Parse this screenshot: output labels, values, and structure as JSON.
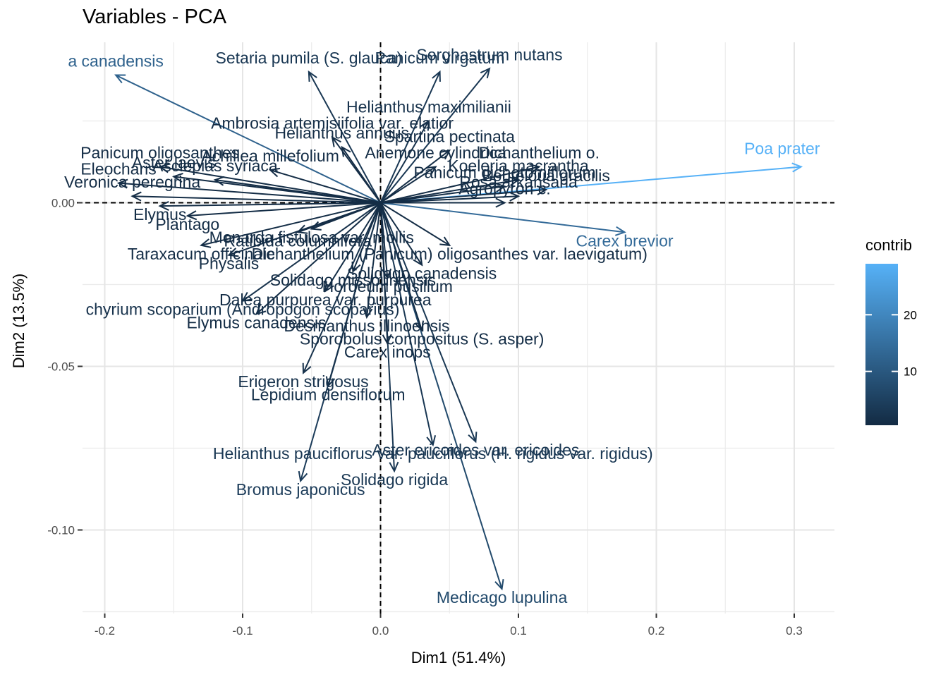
{
  "chart_data": {
    "type": "scatter",
    "title": "Variables - PCA",
    "xlabel": "Dim1 (51.4%)",
    "ylabel": "Dim2 (13.5%)",
    "xlim": [
      -0.215,
      0.33
    ],
    "ylim": [
      -0.125,
      0.055
    ],
    "x_ticks": [
      -0.2,
      -0.1,
      0.0,
      0.1,
      0.2,
      0.3
    ],
    "x_tick_labels": [
      "-0.2",
      "-0.1",
      "0.0",
      "0.1",
      "0.2",
      "0.3"
    ],
    "y_ticks": [
      0.0,
      -0.05,
      -0.1
    ],
    "y_tick_labels": [
      "0.00",
      "-0.05",
      "-0.10"
    ],
    "grid": true,
    "legend": {
      "title": "contrib",
      "position": "right",
      "ticks": [
        10,
        20
      ],
      "tick_labels": [
        "10",
        "20"
      ],
      "range": [
        0.5,
        29
      ],
      "color_low": "#132B43",
      "color_high": "#56B1F7"
    },
    "variables": [
      {
        "label": "Poa prater",
        "x": 0.305,
        "y": 0.011,
        "contrib": 29
      },
      {
        "label": "Carex brevior",
        "x": 0.177,
        "y": -0.009,
        "contrib": 14
      },
      {
        "label": "Medicago lupulina",
        "x": 0.088,
        "y": -0.118,
        "contrib": 7
      },
      {
        "label": "Aster ericoides var. ericoides",
        "x": 0.069,
        "y": -0.073,
        "contrib": 3
      },
      {
        "label": "Helianthus pauciflorus var. pauciflorus (H. rigidus var. rigidus)",
        "x": 0.038,
        "y": -0.074,
        "contrib": 3
      },
      {
        "label": "Solidago rigida",
        "x": 0.01,
        "y": -0.082,
        "contrib": 3
      },
      {
        "label": "Bromus japonicus",
        "x": -0.058,
        "y": -0.085,
        "contrib": 4
      },
      {
        "label": "Lepidium densiflorum",
        "x": -0.038,
        "y": -0.056,
        "contrib": 2
      },
      {
        "label": "Erigeron strigosus",
        "x": -0.056,
        "y": -0.052,
        "contrib": 2
      },
      {
        "label": "Setaria pumila (S. glauca)",
        "x": -0.052,
        "y": 0.04,
        "contrib": 3
      },
      {
        "label": "Panicum virgatum",
        "x": 0.043,
        "y": 0.04,
        "contrib": 3
      },
      {
        "label": "Sorghastrum nutans",
        "x": 0.079,
        "y": 0.041,
        "contrib": 3
      },
      {
        "label": "a canadensis",
        "x": -0.192,
        "y": 0.039,
        "contrib": 12
      },
      {
        "label": "Helianthus maximilianii",
        "x": 0.035,
        "y": 0.025,
        "contrib": 2
      },
      {
        "label": "Ambrosia artemisiifolia var. elatior",
        "x": -0.035,
        "y": 0.02,
        "contrib": 1
      },
      {
        "label": "Helianthus annuus",
        "x": -0.028,
        "y": 0.017,
        "contrib": 1
      },
      {
        "label": "Spartina pectinata",
        "x": 0.05,
        "y": 0.016,
        "contrib": 1
      },
      {
        "label": "Panicum oligosanthes",
        "x": -0.16,
        "y": 0.011,
        "contrib": 1
      },
      {
        "label": "Eleocharis",
        "x": -0.19,
        "y": 0.006,
        "contrib": 1
      },
      {
        "label": "Veronica peregrina",
        "x": -0.18,
        "y": 0.002,
        "contrib": 1
      },
      {
        "label": "Elymus",
        "x": -0.16,
        "y": -0.001,
        "contrib": 1
      },
      {
        "label": "Plantago",
        "x": -0.14,
        "y": -0.004,
        "contrib": 1
      },
      {
        "label": "Monarda fistulosa var. mollis",
        "x": -0.05,
        "y": -0.008,
        "contrib": 1
      },
      {
        "label": "Taraxacum officinale",
        "x": -0.13,
        "y": -0.013,
        "contrib": 1
      },
      {
        "label": "Dichanthelium (Panicum) oligosanthes var. laevigatum)",
        "x": 0.05,
        "y": -0.013,
        "contrib": 1
      },
      {
        "label": "Physalis",
        "x": -0.11,
        "y": -0.016,
        "contrib": 1
      },
      {
        "label": "Solidago canadensis",
        "x": 0.03,
        "y": -0.019,
        "contrib": 1
      },
      {
        "label": "Hordeum pusillum",
        "x": 0.005,
        "y": -0.023,
        "contrib": 1
      },
      {
        "label": "Dalea purpurea var. purpurea",
        "x": -0.04,
        "y": -0.027,
        "contrib": 1
      },
      {
        "label": "chyrium scoparium (Andropogon scoparius)",
        "x": -0.1,
        "y": -0.03,
        "contrib": 2
      },
      {
        "label": "Elymus canadensis",
        "x": -0.09,
        "y": -0.034,
        "contrib": 1
      },
      {
        "label": "Desmanthus illinoensis",
        "x": -0.01,
        "y": -0.035,
        "contrib": 1
      },
      {
        "label": "Sporobolus compositus (S. asper)",
        "x": 0.03,
        "y": -0.039,
        "contrib": 1
      },
      {
        "label": "Carex inops",
        "x": 0.005,
        "y": -0.043,
        "contrib": 1
      },
      {
        "label": "Agropyron c.",
        "x": 0.09,
        "y": 0.0,
        "contrib": 1
      },
      {
        "label": "Dichanthelium o.",
        "x": 0.115,
        "y": 0.011,
        "contrib": 1
      },
      {
        "label": "Koeleria macrantha",
        "x": 0.1,
        "y": 0.007,
        "contrib": 1
      },
      {
        "label": "Bouteloua gracilis",
        "x": 0.12,
        "y": 0.004,
        "contrib": 1
      },
      {
        "label": "Panicum dichotomiflorum",
        "x": 0.09,
        "y": 0.005,
        "contrib": 1
      },
      {
        "label": "Rosa arkansana",
        "x": 0.1,
        "y": 0.002,
        "contrib": 1
      },
      {
        "label": "Achillea millefolium",
        "x": -0.08,
        "y": 0.01,
        "contrib": 1
      },
      {
        "label": "Asclepias syriaca",
        "x": -0.12,
        "y": 0.007,
        "contrib": 1
      },
      {
        "label": "Ratibida columnifera",
        "x": -0.06,
        "y": -0.009,
        "contrib": 1
      },
      {
        "label": "Anemone cylindrica",
        "x": 0.04,
        "y": 0.011,
        "contrib": 1
      },
      {
        "label": "Solidago missouriensis",
        "x": -0.02,
        "y": -0.021,
        "contrib": 1
      },
      {
        "label": "Aster laevis",
        "x": -0.15,
        "y": 0.008,
        "contrib": 1
      }
    ]
  },
  "labels": [
    {
      "text": "Variables - PCA"
    },
    {
      "text": "a canadensis",
      "bold": false
    },
    {
      "text": "Setaria pumila (S. glauca)"
    },
    {
      "text": "Panicum virgatum"
    },
    {
      "text": "Sorghastrum nutans"
    },
    {
      "text": "Helianthus maximilianii"
    },
    {
      "text": "Ambrosia artemisiifolia var. elatior"
    },
    {
      "text": "Helianthus annuus"
    },
    {
      "text": "Spartina pectinata"
    },
    {
      "text": "Poa prater"
    },
    {
      "text": "Carex brevior"
    },
    {
      "text": "Panicum oligosanthes"
    },
    {
      "text": "Eleocharis"
    },
    {
      "text": "Veronica peregrina"
    },
    {
      "text": "Elymus"
    },
    {
      "text": "Plantago"
    },
    {
      "text": "Monarda fistulosa var. mollis"
    },
    {
      "text": "Taraxacum officinale"
    },
    {
      "text": "Physalis"
    },
    {
      "text": "Solidago canadensis"
    },
    {
      "text": "Hordeum pusillum"
    },
    {
      "text": "Dalea purpurea var. purpurea"
    },
    {
      "text": "chyrium scoparium (Andropogon scoparius)"
    },
    {
      "text": "Elymus canadensis"
    },
    {
      "text": "Desmanthus illinoensis"
    },
    {
      "text": "Sporobolus compositus (S. asper)"
    },
    {
      "text": "Carex inops"
    },
    {
      "text": "Lepidium densiflorum"
    },
    {
      "text": "Erigeron strigosus"
    },
    {
      "text": "Aster ericoides var. ericoides"
    },
    {
      "text": "Helianthus pauciflorus var. pauciflorus (H. rigidus var. rigidus)"
    },
    {
      "text": "Solidago rigida"
    },
    {
      "text": "Bromus japonicus"
    },
    {
      "text": "Medicago lupulina"
    }
  ]
}
